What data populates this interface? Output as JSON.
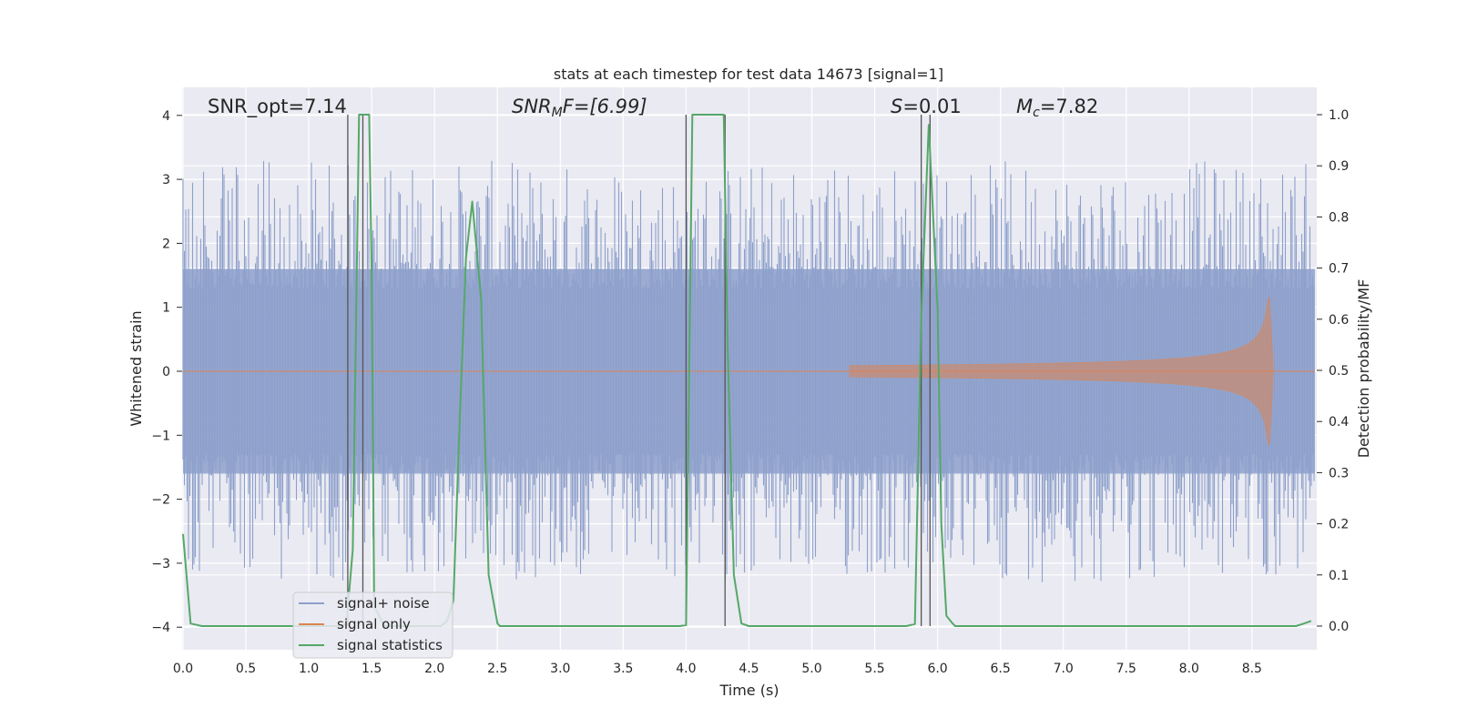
{
  "chart_data": {
    "type": "line",
    "title": "stats at each timestep for test data 14673 [signal=1]",
    "xlabel": "Time (s)",
    "ylabel": "Whitened strain",
    "y2label": "Detection probability/MF",
    "xlim": [
      0.0,
      9.0
    ],
    "ylim": [
      -4.35,
      4.4
    ],
    "y2lim": [
      -0.05,
      1.045
    ],
    "xticks": [
      "0.0",
      "0.5",
      "1.0",
      "1.5",
      "2.0",
      "2.5",
      "3.0",
      "3.5",
      "4.0",
      "4.5",
      "5.0",
      "5.5",
      "6.0",
      "6.5",
      "7.0",
      "7.5",
      "8.0",
      "8.5"
    ],
    "yticks": [
      "−4",
      "−3",
      "−2",
      "−1",
      "0",
      "1",
      "2",
      "3",
      "4"
    ],
    "y2ticks": [
      "0.0",
      "0.1",
      "0.2",
      "0.3",
      "0.4",
      "0.5",
      "0.6",
      "0.7",
      "0.8",
      "0.9",
      "1.0"
    ],
    "grid": true,
    "legend_position": "lower-left",
    "annotations": {
      "snr_opt": "SNR_opt=7.14",
      "snr_mf_base": "SNR",
      "snr_mf_sub": "M",
      "snr_mf_rest": "F=[6.99]",
      "s_italic": "S",
      "s_value": "=0.01",
      "mc_base": "M",
      "mc_sub": "c",
      "mc_value": "=7.82"
    },
    "series": [
      {
        "name": "signal+ noise",
        "color": "#8da0cb",
        "description_values": "dense whitened noise, amplitude mostly within about ±1.6 with spikes to about ±3.3",
        "envelope_approx": 1.6,
        "peak_approx": 3.3
      },
      {
        "name": "signal only",
        "color": "#dd8452",
        "chirp": {
          "start_x": 5.3,
          "merger_x": 8.64,
          "peak_amplitude": 1.15
        }
      },
      {
        "name": "signal statistics",
        "color": "#55a868",
        "axis": "right",
        "x": [
          0.0,
          0.06,
          0.15,
          1.25,
          1.3,
          1.35,
          1.4,
          1.44,
          1.48,
          1.5,
          1.52,
          1.58,
          1.6,
          2.05,
          2.1,
          2.15,
          2.2,
          2.25,
          2.3,
          2.37,
          2.43,
          2.5,
          2.52,
          2.55,
          3.95,
          4.0,
          4.05,
          4.3,
          4.33,
          4.38,
          4.44,
          4.5,
          5.75,
          5.82,
          5.87,
          5.93,
          6.0,
          6.03,
          6.07,
          6.12,
          6.14,
          8.85,
          8.9,
          8.97
        ],
        "values": [
          0.18,
          0.005,
          0.0,
          0.0,
          0.004,
          0.15,
          1.0,
          1.0,
          1.0,
          0.7,
          0.04,
          0.01,
          0.0,
          0.0,
          0.01,
          0.05,
          0.4,
          0.72,
          0.83,
          0.64,
          0.1,
          0.005,
          0.0,
          0.0,
          0.0,
          0.002,
          1.0,
          1.0,
          0.55,
          0.1,
          0.005,
          0.0,
          0.0,
          0.004,
          0.6,
          0.98,
          0.62,
          0.2,
          0.02,
          0.005,
          0.0,
          0.0,
          0.004,
          0.01
        ]
      }
    ],
    "vertical_markers_x": [
      1.31,
      1.43,
      4.0,
      4.31,
      5.87,
      5.94
    ]
  }
}
